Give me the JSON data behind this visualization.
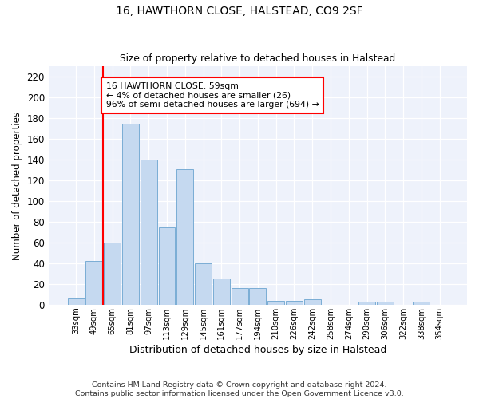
{
  "title": "16, HAWTHORN CLOSE, HALSTEAD, CO9 2SF",
  "subtitle": "Size of property relative to detached houses in Halstead",
  "xlabel": "Distribution of detached houses by size in Halstead",
  "ylabel": "Number of detached properties",
  "bar_labels": [
    "33sqm",
    "49sqm",
    "65sqm",
    "81sqm",
    "97sqm",
    "113sqm",
    "129sqm",
    "145sqm",
    "161sqm",
    "177sqm",
    "194sqm",
    "210sqm",
    "226sqm",
    "242sqm",
    "258sqm",
    "274sqm",
    "290sqm",
    "306sqm",
    "322sqm",
    "338sqm",
    "354sqm"
  ],
  "bar_values": [
    6,
    42,
    60,
    175,
    140,
    75,
    131,
    40,
    25,
    16,
    16,
    4,
    4,
    5,
    0,
    0,
    3,
    3,
    0,
    3,
    0
  ],
  "bar_color": "#c5d9f0",
  "bar_edge_color": "#7aadd4",
  "property_line_label": "16 HAWTHORN CLOSE: 59sqm",
  "annotation_line1": "← 4% of detached houses are smaller (26)",
  "annotation_line2": "96% of semi-detached houses are larger (694) →",
  "annotation_box_color": "white",
  "annotation_box_edge_color": "red",
  "vline_color": "red",
  "vline_x": 1.5,
  "ylim": [
    0,
    230
  ],
  "yticks": [
    0,
    20,
    40,
    60,
    80,
    100,
    120,
    140,
    160,
    180,
    200,
    220
  ],
  "bg_color": "#eef2fb",
  "grid_color": "#ffffff",
  "footnote1": "Contains HM Land Registry data © Crown copyright and database right 2024.",
  "footnote2": "Contains public sector information licensed under the Open Government Licence v3.0."
}
